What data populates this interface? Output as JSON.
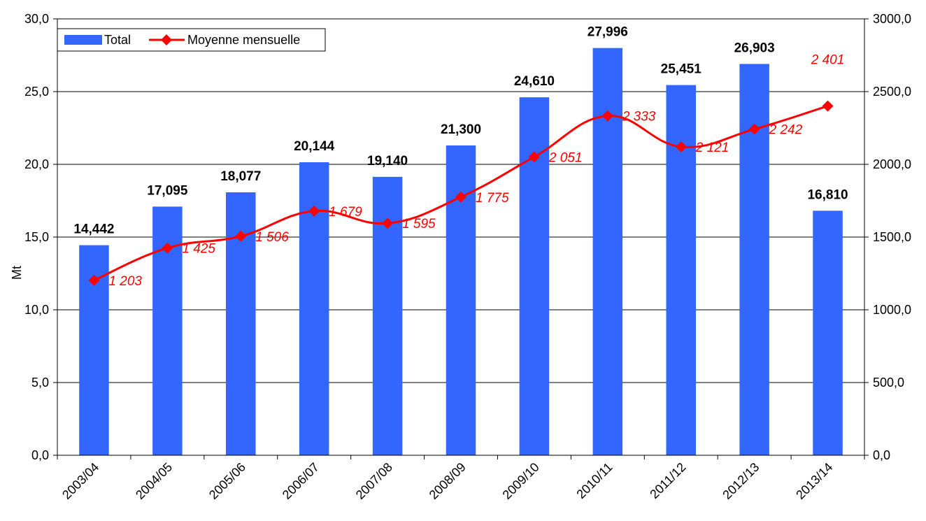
{
  "chart_data": {
    "type": "bar",
    "categories": [
      "2003/04",
      "2004/05",
      "2005/06",
      "2006/07",
      "2007/08",
      "2008/09",
      "2009/10",
      "2010/11",
      "2011/12",
      "2012/13",
      "2013/14"
    ],
    "series": [
      {
        "name": "Total",
        "type": "bar",
        "axis": "left",
        "color": "#3366FF",
        "values": [
          14.442,
          17.095,
          18.077,
          20.144,
          19.14,
          21.3,
          24.61,
          27.996,
          25.451,
          26.903,
          16.81
        ],
        "labels": [
          "14,442",
          "17,095",
          "18,077",
          "20,144",
          "19,140",
          "21,300",
          "24,610",
          "27,996",
          "25,451",
          "26,903",
          "16,810"
        ]
      },
      {
        "name": "Moyenne mensuelle",
        "type": "line",
        "axis": "right",
        "color": "#FF0000",
        "values": [
          1203,
          1425,
          1506,
          1679,
          1595,
          1775,
          2051,
          2333,
          2121,
          2242,
          2401
        ],
        "labels": [
          "1 203",
          "1 425",
          "1 506",
          "1 679",
          "1 595",
          "1 775",
          "2 051",
          "2 333",
          "2 121",
          "2 242",
          "2 401"
        ]
      }
    ],
    "ylabel": "Mt",
    "ylim": [
      0,
      30
    ],
    "y2lim": [
      0,
      3000
    ],
    "yticks": [
      "0,0",
      "5,0",
      "10,0",
      "15,0",
      "20,0",
      "25,0",
      "30,0"
    ],
    "y2ticks": [
      "0,0",
      "500,0",
      "1000,0",
      "1500,0",
      "2000,0",
      "2500,0",
      "3000,0"
    ],
    "grid": true,
    "legend": "top-left"
  }
}
